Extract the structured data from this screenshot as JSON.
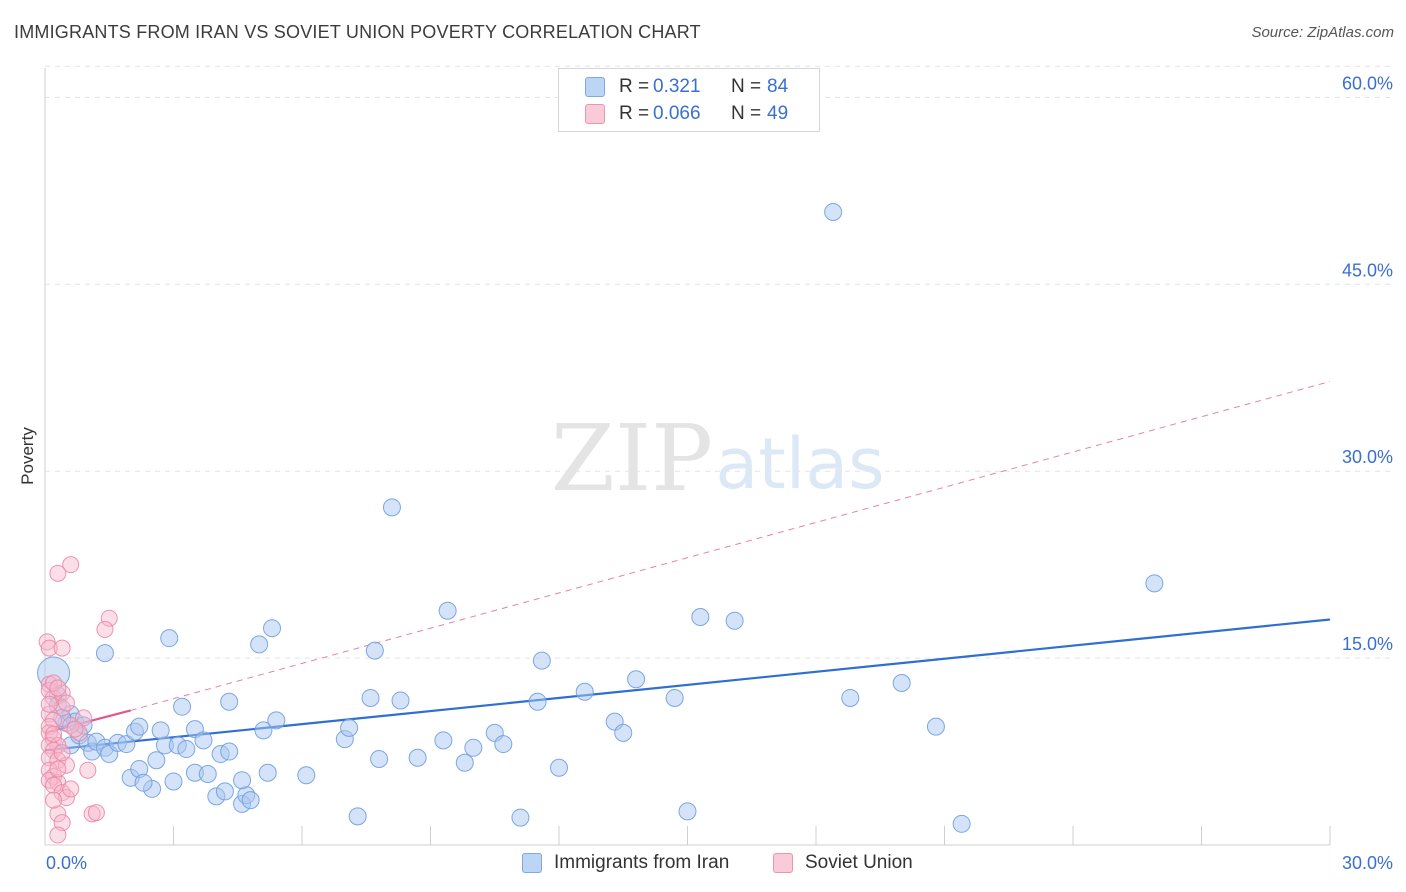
{
  "title": "IMMIGRANTS FROM IRAN VS SOVIET UNION POVERTY CORRELATION CHART",
  "source": "Source: ZipAtlas.com",
  "watermark": {
    "zip": "ZIP",
    "atlas": "atlas"
  },
  "legend": [
    {
      "r_label": "R =",
      "r_value": "0.321",
      "n_label": "N =",
      "n_value": "84"
    },
    {
      "r_label": "R =",
      "r_value": "0.066",
      "n_label": "N =",
      "n_value": "49"
    }
  ],
  "colors": {
    "blue_fill": "#a9c8f0",
    "blue_stroke": "#6f9fe0",
    "blue_line": "#2e6fd1",
    "pink_fill": "#f7b8cb",
    "pink_stroke": "#eb88a6",
    "pink_line": "#e0578a",
    "axis_text": "#3a6fd0",
    "grid": "#e3e3e3"
  },
  "chart_data": {
    "type": "scatter",
    "title": "IMMIGRANTS FROM IRAN VS SOVIET UNION POVERTY CORRELATION CHART",
    "xlabel": "",
    "ylabel": "Poverty",
    "xlim": [
      0,
      30
    ],
    "ylim": [
      0,
      63
    ],
    "x_tick_labels": [
      "0.0%",
      "30.0%"
    ],
    "y_ticks": [
      15,
      30,
      45,
      60
    ],
    "y_tick_labels": [
      "15.0%",
      "30.0%",
      "45.0%",
      "60.0%"
    ],
    "grid": true,
    "series": [
      {
        "name": "Immigrants from Iran",
        "color": "#a9c8f0",
        "points": [
          [
            0.2,
            13.8
          ],
          [
            0.3,
            12.0
          ],
          [
            0.3,
            11.2
          ],
          [
            0.5,
            9.8
          ],
          [
            0.6,
            10.5
          ],
          [
            0.7,
            9.9
          ],
          [
            0.6,
            8.0
          ],
          [
            0.8,
            8.8
          ],
          [
            1.0,
            8.2
          ],
          [
            1.1,
            7.5
          ],
          [
            1.2,
            8.3
          ],
          [
            1.4,
            7.8
          ],
          [
            1.5,
            7.3
          ],
          [
            1.7,
            8.2
          ],
          [
            1.9,
            8.1
          ],
          [
            2.1,
            9.1
          ],
          [
            2.2,
            9.5
          ],
          [
            2.0,
            5.4
          ],
          [
            2.2,
            6.1
          ],
          [
            2.5,
            4.5
          ],
          [
            2.6,
            6.8
          ],
          [
            2.8,
            8.0
          ],
          [
            3.0,
            5.1
          ],
          [
            3.1,
            8.0
          ],
          [
            3.3,
            7.7
          ],
          [
            3.5,
            5.8
          ],
          [
            3.5,
            9.3
          ],
          [
            3.8,
            5.7
          ],
          [
            4.1,
            7.3
          ],
          [
            4.3,
            7.5
          ],
          [
            4.0,
            3.9
          ],
          [
            4.2,
            4.3
          ],
          [
            4.6,
            3.3
          ],
          [
            4.7,
            4.0
          ],
          [
            4.8,
            3.6
          ],
          [
            5.1,
            9.2
          ],
          [
            5.2,
            5.8
          ],
          [
            5.4,
            10.0
          ],
          [
            5.0,
            16.1
          ],
          [
            5.3,
            17.4
          ],
          [
            1.4,
            15.4
          ],
          [
            2.9,
            16.6
          ],
          [
            3.2,
            11.1
          ],
          [
            4.3,
            11.5
          ],
          [
            6.1,
            5.6
          ],
          [
            7.0,
            8.5
          ],
          [
            7.1,
            9.4
          ],
          [
            7.3,
            2.3
          ],
          [
            7.6,
            11.8
          ],
          [
            7.7,
            15.6
          ],
          [
            7.8,
            6.9
          ],
          [
            8.1,
            27.1
          ],
          [
            8.3,
            11.6
          ],
          [
            8.7,
            7.0
          ],
          [
            9.3,
            8.4
          ],
          [
            9.4,
            18.8
          ],
          [
            9.8,
            6.6
          ],
          [
            10.0,
            7.8
          ],
          [
            10.5,
            9.0
          ],
          [
            10.7,
            8.1
          ],
          [
            11.1,
            2.2
          ],
          [
            11.5,
            11.5
          ],
          [
            11.6,
            14.8
          ],
          [
            12.0,
            6.2
          ],
          [
            12.6,
            12.3
          ],
          [
            13.3,
            9.9
          ],
          [
            13.5,
            9.0
          ],
          [
            13.8,
            13.3
          ],
          [
            14.7,
            11.8
          ],
          [
            15.0,
            2.7
          ],
          [
            15.3,
            18.3
          ],
          [
            16.1,
            18.0
          ],
          [
            18.4,
            50.8
          ],
          [
            18.8,
            11.8
          ],
          [
            20.0,
            13.0
          ],
          [
            20.8,
            9.5
          ],
          [
            21.4,
            1.7
          ],
          [
            25.9,
            21.0
          ],
          [
            2.7,
            9.2
          ],
          [
            3.7,
            8.4
          ],
          [
            0.4,
            10.2
          ],
          [
            0.9,
            9.6
          ],
          [
            2.3,
            5.0
          ],
          [
            4.6,
            5.2
          ]
        ]
      },
      {
        "name": "Soviet Union",
        "color": "#f7b8cb",
        "points": [
          [
            0.05,
            16.3
          ],
          [
            0.1,
            15.8
          ],
          [
            0.4,
            15.8
          ],
          [
            0.6,
            22.5
          ],
          [
            0.3,
            21.8
          ],
          [
            1.5,
            18.2
          ],
          [
            1.4,
            17.3
          ],
          [
            0.1,
            12.9
          ],
          [
            0.1,
            12.4
          ],
          [
            0.2,
            11.8
          ],
          [
            0.4,
            12.2
          ],
          [
            0.4,
            11.0
          ],
          [
            0.1,
            10.5
          ],
          [
            0.2,
            10.0
          ],
          [
            0.1,
            9.5
          ],
          [
            0.1,
            9.0
          ],
          [
            0.2,
            8.5
          ],
          [
            0.3,
            8.0
          ],
          [
            0.1,
            8.0
          ],
          [
            0.2,
            7.6
          ],
          [
            0.1,
            7.0
          ],
          [
            0.3,
            6.8
          ],
          [
            0.1,
            6.0
          ],
          [
            0.2,
            5.5
          ],
          [
            0.1,
            5.2
          ],
          [
            0.3,
            5.0
          ],
          [
            0.2,
            4.8
          ],
          [
            0.4,
            4.2
          ],
          [
            0.5,
            3.8
          ],
          [
            0.6,
            4.5
          ],
          [
            0.5,
            6.4
          ],
          [
            1.0,
            6.0
          ],
          [
            0.8,
            9.0
          ],
          [
            0.6,
            9.6
          ],
          [
            0.9,
            10.2
          ],
          [
            0.3,
            2.5
          ],
          [
            0.4,
            1.8
          ],
          [
            0.3,
            0.8
          ],
          [
            1.1,
            2.5
          ],
          [
            1.2,
            2.6
          ],
          [
            0.2,
            13.0
          ],
          [
            0.3,
            12.6
          ],
          [
            0.1,
            11.3
          ],
          [
            0.2,
            8.9
          ],
          [
            0.4,
            7.4
          ],
          [
            0.3,
            6.1
          ],
          [
            0.2,
            3.6
          ],
          [
            0.5,
            11.4
          ],
          [
            0.7,
            9.3
          ]
        ]
      }
    ],
    "trendlines": [
      {
        "series": "Immigrants from Iran",
        "style": "solid",
        "from": [
          0,
          7.6
        ],
        "to": [
          30,
          18.1
        ]
      },
      {
        "series": "Soviet Union",
        "style": "solid",
        "from": [
          0,
          9.0
        ],
        "to": [
          2.0,
          10.8
        ]
      },
      {
        "series": "Soviet Union",
        "style": "dashed",
        "from": [
          2.0,
          10.8
        ],
        "to": [
          30,
          37.2
        ]
      }
    ]
  }
}
